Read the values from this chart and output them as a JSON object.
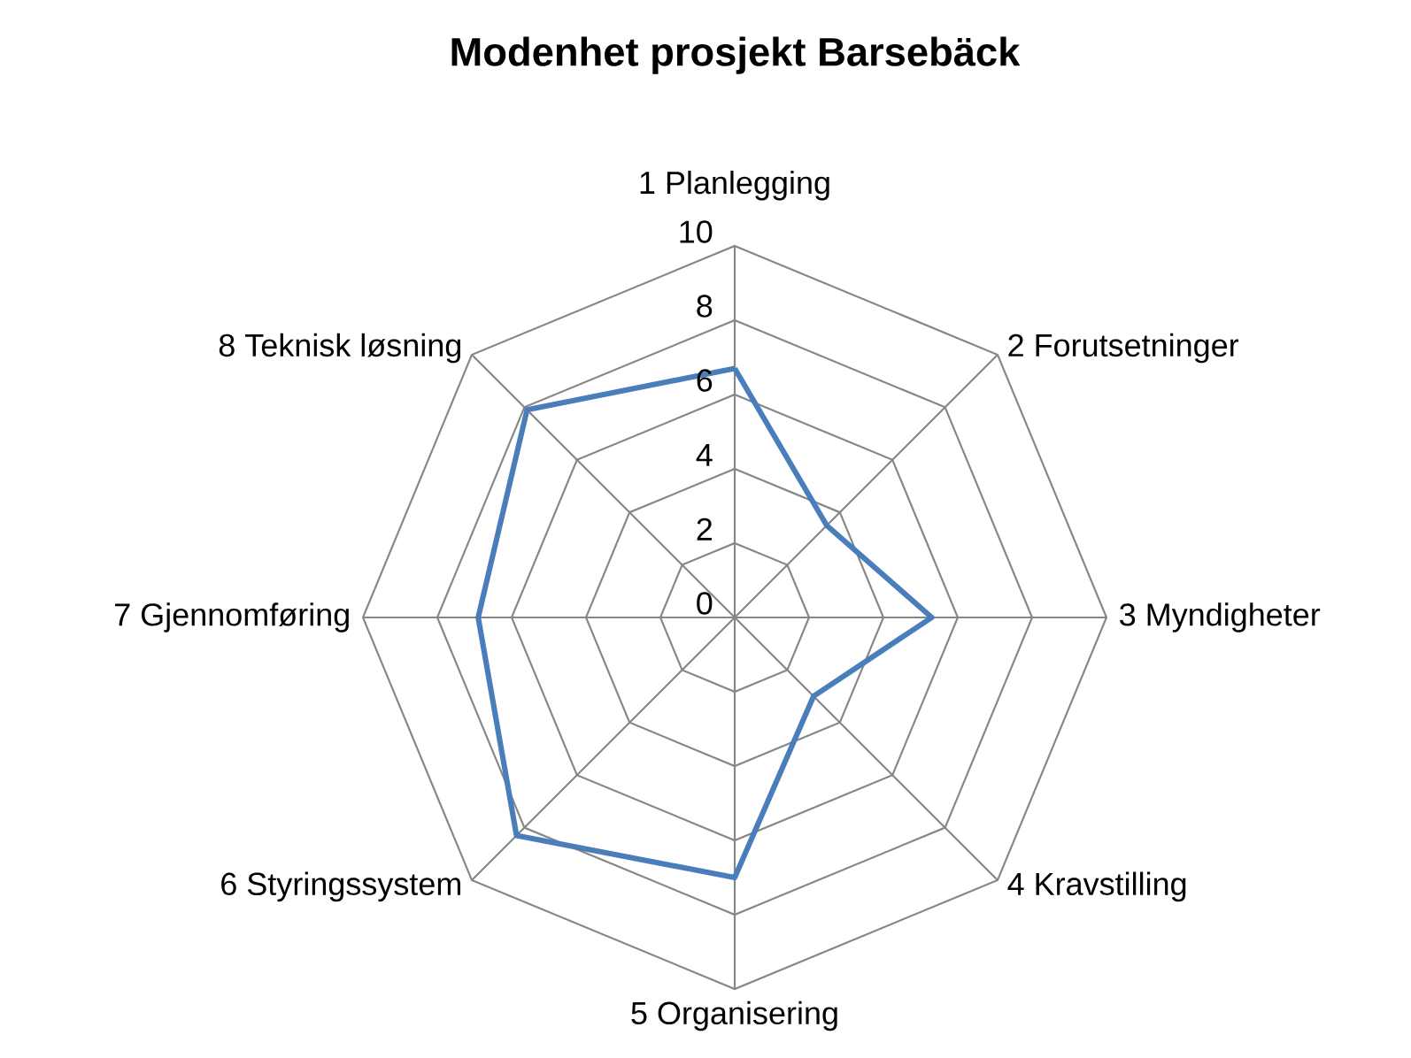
{
  "chart_data": {
    "type": "radar",
    "title": "Modenhet prosjekt Barsebäck",
    "categories": [
      "1 Planlegging",
      "2 Forutsetninger",
      "3 Myndigheter",
      "4 Kravstilling",
      "5 Organisering",
      "6 Styringssystem",
      "7 Gjennomføring",
      "8 Teknisk løsning"
    ],
    "series": [
      {
        "color": "#4a7ebb",
        "values": [
          6.7,
          3.5,
          5.3,
          3,
          7,
          8.3,
          6.9,
          7.9
        ]
      }
    ],
    "ylim": [
      0,
      10
    ],
    "yticks": [
      0,
      2,
      4,
      6,
      8,
      10
    ],
    "grid": true,
    "marker": "none",
    "line_style": "solid"
  }
}
